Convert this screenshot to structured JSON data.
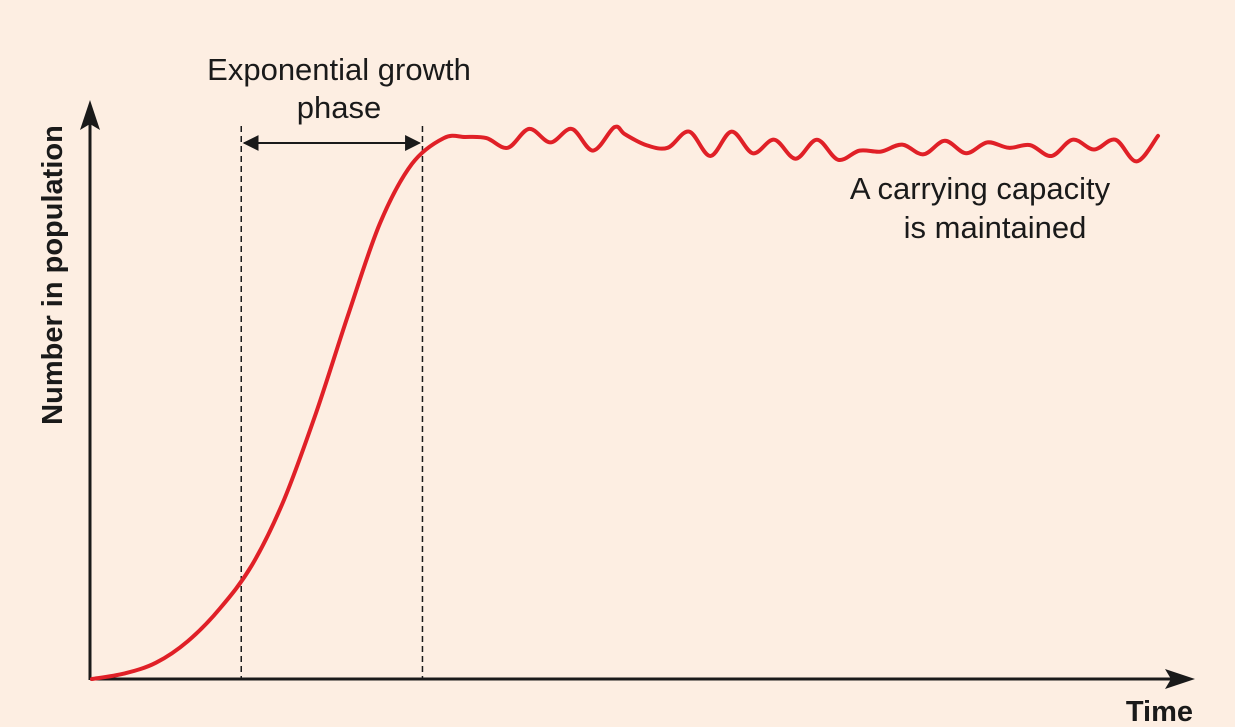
{
  "chart_data": {
    "type": "line",
    "title": "",
    "xlabel": "Time",
    "ylabel": "Number in population",
    "xlim": [
      0,
      100
    ],
    "ylim": [
      0,
      100
    ],
    "grid": false,
    "colors": {
      "curve": "#e02027",
      "axis": "#1a1a1a",
      "background": "#fdeee2"
    },
    "series": [
      {
        "x": [
          0,
          3,
          6,
          9,
          12,
          15,
          18,
          21,
          24,
          27,
          30,
          33,
          35,
          37,
          39,
          41,
          43,
          45,
          47,
          49,
          50,
          52,
          54,
          56,
          58,
          60,
          62,
          64,
          66,
          68,
          70,
          72,
          74,
          76,
          78,
          80,
          82,
          84,
          86,
          88,
          90,
          92,
          94,
          96,
          98,
          100
        ],
        "y": [
          0,
          1,
          3,
          7,
          13,
          21,
          33,
          49,
          67,
          84,
          95,
          99.8,
          100,
          99.8,
          98,
          101.5,
          99,
          101.5,
          97.5,
          101.8,
          100.5,
          98.5,
          98,
          101,
          96.5,
          101,
          97,
          99.5,
          96,
          99.5,
          95.8,
          97.5,
          97.3,
          98.6,
          96.8,
          99.3,
          97,
          99,
          98,
          98.5,
          96.5,
          99.5,
          97.7,
          99.5,
          95.5,
          100.2
        ]
      }
    ],
    "annotations": [
      {
        "text_lines": [
          "Exponential growth",
          "phase"
        ],
        "x_range": [
          14,
          31
        ]
      },
      {
        "text_lines": [
          "A carrying capacity",
          "is maintained"
        ]
      }
    ]
  }
}
